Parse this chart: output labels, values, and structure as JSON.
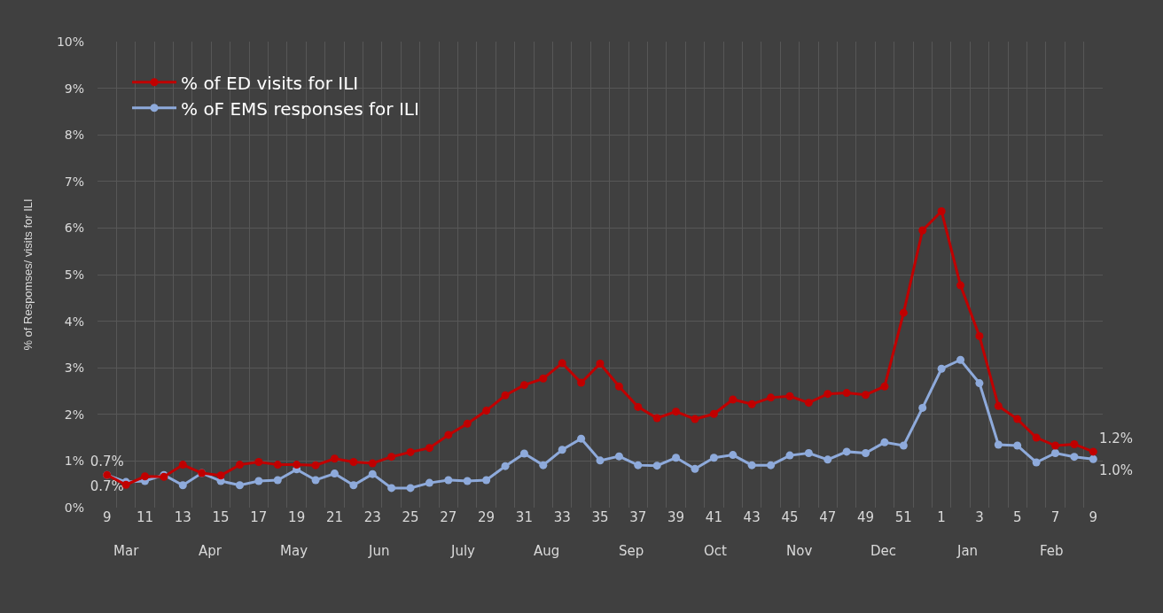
{
  "chart_data": {
    "type": "line",
    "ylabel": "% of Respomses/ visits for ILI",
    "categories": [
      "9",
      null,
      "11",
      null,
      "13",
      null,
      "15",
      null,
      "17",
      null,
      "19",
      null,
      "21",
      null,
      "23",
      null,
      "25",
      null,
      "27",
      null,
      "29",
      null,
      "31",
      null,
      "33",
      null,
      "35",
      null,
      "37",
      null,
      "39",
      null,
      "41",
      null,
      "43",
      null,
      "45",
      null,
      "47",
      null,
      "49",
      null,
      "51",
      null,
      "1",
      null,
      "3",
      null,
      "5",
      null,
      "7",
      null,
      "9"
    ],
    "series": [
      {
        "name": "% of ED visits for ILI",
        "color": "#c00000",
        "values": [
          0.7,
          0.49,
          0.67,
          0.66,
          0.92,
          0.74,
          0.69,
          0.92,
          0.98,
          0.92,
          0.92,
          0.91,
          1.05,
          0.98,
          0.95,
          1.09,
          1.19,
          1.28,
          1.56,
          1.8,
          2.08,
          2.41,
          2.63,
          2.77,
          3.1,
          2.68,
          3.09,
          2.6,
          2.16,
          1.92,
          2.06,
          1.9,
          2.01,
          2.32,
          2.22,
          2.36,
          2.39,
          2.25,
          2.44,
          2.46,
          2.42,
          2.6,
          4.18,
          5.95,
          6.36,
          4.77,
          3.68,
          2.18,
          1.9,
          1.5,
          1.33,
          1.36,
          1.2
        ],
        "value_labels": [
          "0.7%",
          null,
          null,
          null,
          null,
          null,
          null,
          null,
          null,
          null,
          null,
          null,
          null,
          null,
          null,
          null,
          null,
          null,
          null,
          null,
          null,
          null,
          null,
          null,
          null,
          null,
          null,
          null,
          null,
          null,
          null,
          null,
          null,
          null,
          null,
          null,
          null,
          null,
          null,
          null,
          null,
          null,
          null,
          null,
          null,
          null,
          null,
          null,
          null,
          null,
          null,
          null,
          "1.2%"
        ]
      },
      {
        "name": "% oF EMS responses for ILI",
        "color": "#8eaadb",
        "values": [
          0.7,
          0.55,
          0.57,
          0.7,
          0.48,
          0.74,
          0.57,
          0.48,
          0.57,
          0.59,
          0.82,
          0.59,
          0.73,
          0.48,
          0.72,
          0.42,
          0.42,
          0.53,
          0.59,
          0.57,
          0.59,
          0.89,
          1.16,
          0.91,
          1.24,
          1.48,
          1.01,
          1.1,
          0.91,
          0.9,
          1.07,
          0.83,
          1.07,
          1.13,
          0.91,
          0.91,
          1.12,
          1.17,
          1.03,
          1.2,
          1.17,
          1.4,
          1.33,
          2.14,
          2.98,
          3.17,
          2.67,
          1.35,
          1.33,
          0.97,
          1.17,
          1.09,
          1.04
        ],
        "value_labels": [
          "0.7%",
          null,
          null,
          null,
          null,
          null,
          null,
          null,
          null,
          null,
          null,
          null,
          null,
          null,
          null,
          null,
          null,
          null,
          null,
          null,
          null,
          null,
          null,
          null,
          null,
          null,
          null,
          null,
          null,
          null,
          null,
          null,
          null,
          null,
          null,
          null,
          null,
          null,
          null,
          null,
          null,
          null,
          null,
          null,
          null,
          null,
          null,
          null,
          null,
          null,
          null,
          null,
          "1.0%"
        ]
      }
    ],
    "ylim": [
      0,
      10
    ],
    "yticks": [
      {
        "value": 0,
        "label": "0%"
      },
      {
        "value": 1,
        "label": "1%"
      },
      {
        "value": 2,
        "label": "2%"
      },
      {
        "value": 3,
        "label": "3%"
      },
      {
        "value": 4,
        "label": "4%"
      },
      {
        "value": 5,
        "label": "5%"
      },
      {
        "value": 6,
        "label": "6%"
      },
      {
        "value": 7,
        "label": "7%"
      },
      {
        "value": 8,
        "label": "8%"
      },
      {
        "value": 9,
        "label": "9%"
      },
      {
        "value": 10,
        "label": "10%"
      }
    ],
    "annotations": [
      "Mar",
      "Apr",
      "May",
      "Jun",
      "July",
      "Aug",
      "Sep",
      "Oct",
      "Nov",
      "Dec",
      "Jan",
      "Feb"
    ],
    "grid": true,
    "legend": "top left",
    "marker": "circle",
    "line_style": "solid"
  }
}
